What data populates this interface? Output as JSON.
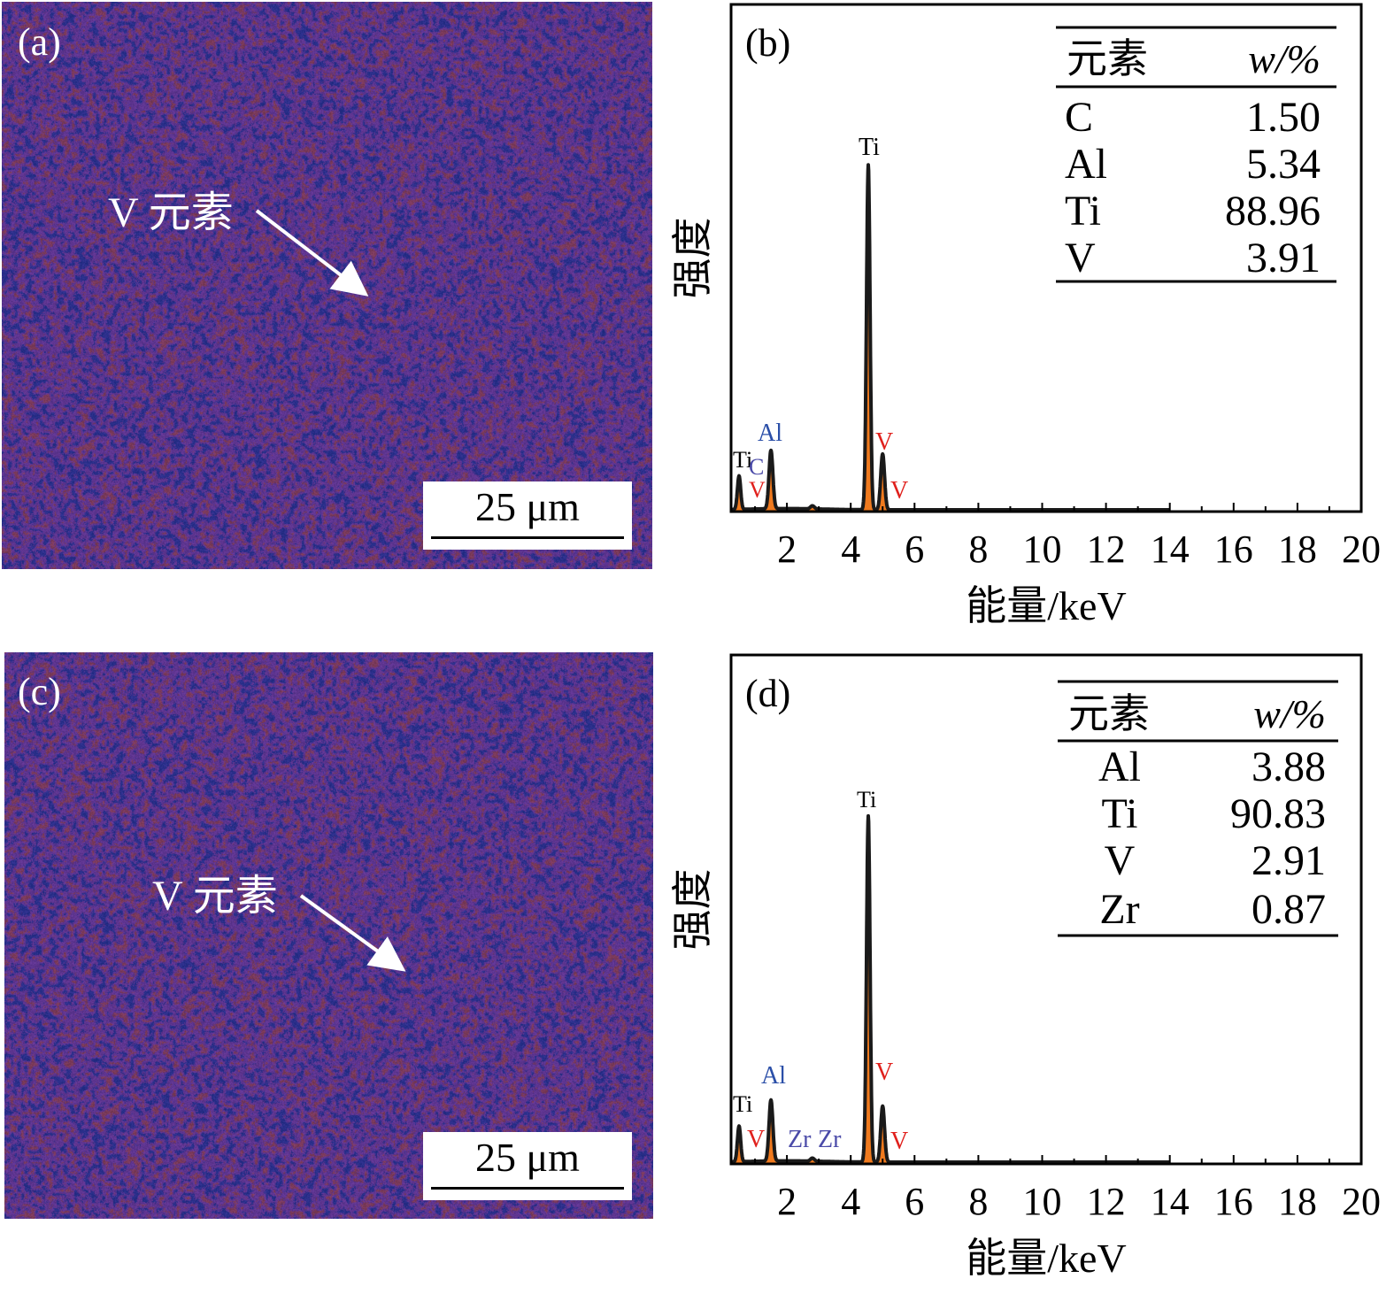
{
  "maps": [
    {
      "panel": "(a)",
      "annotation": "V 元素",
      "scale_bar": "25 μm"
    },
    {
      "panel": "(c)",
      "annotation": "V 元素",
      "scale_bar": "25 μm"
    }
  ],
  "colors": {
    "map_base": "#5e3590",
    "map_blue": "#2a2f8a",
    "map_red": "#7a3a5a",
    "spectrum_line": "#1a1a1a",
    "spectrum_fill": "#f07a1e",
    "label_ti": "#000000",
    "label_al": "#2b4fa8",
    "label_v": "#e0201c",
    "label_c": "#4a4aa8",
    "label_zr": "#4a4aa8"
  },
  "chart_data": [
    {
      "type": "line",
      "panel": "(b)",
      "xlabel": "能量/keV",
      "ylabel": "强度",
      "xlim": [
        0.25,
        20
      ],
      "ylim": [
        0,
        100
      ],
      "xticks": [
        "2",
        "4",
        "6",
        "8",
        "10",
        "12",
        "14",
        "16",
        "18",
        "20"
      ],
      "peaks": [
        {
          "energy": 0.5,
          "height": 6.6
        },
        {
          "energy": 1.5,
          "height": 11.5
        },
        {
          "energy": 2.8,
          "height": 0.6
        },
        {
          "energy": 4.55,
          "height": 68
        },
        {
          "energy": 5.0,
          "height": 11
        }
      ],
      "spectrum_end": 14,
      "annotations": [
        {
          "text": "Ti",
          "color": "label_ti"
        },
        {
          "text": "C",
          "color": "label_c"
        },
        {
          "text": "V",
          "color": "label_v"
        },
        {
          "text": "Al",
          "color": "label_al"
        },
        {
          "text": "Ti",
          "color": "label_ti"
        },
        {
          "text": "V",
          "color": "label_v"
        },
        {
          "text": "V",
          "color": "label_v"
        }
      ],
      "table": {
        "headers": [
          "元素",
          "w/%"
        ],
        "rows": [
          [
            "C",
            "1.50"
          ],
          [
            "Al",
            "5.34"
          ],
          [
            "Ti",
            "88.96"
          ],
          [
            "V",
            "3.91"
          ]
        ]
      }
    },
    {
      "type": "line",
      "panel": "(d)",
      "xlabel": "能量/keV",
      "ylabel": "强度",
      "xlim": [
        0.25,
        20
      ],
      "ylim": [
        0,
        100
      ],
      "xticks": [
        "2",
        "4",
        "6",
        "8",
        "10",
        "12",
        "14",
        "16",
        "18",
        "20"
      ],
      "peaks": [
        {
          "energy": 0.5,
          "height": 7
        },
        {
          "energy": 1.5,
          "height": 12
        },
        {
          "energy": 2.8,
          "height": 0.6
        },
        {
          "energy": 4.55,
          "height": 68
        },
        {
          "energy": 5.0,
          "height": 11
        }
      ],
      "spectrum_end": 14,
      "annotations": [
        {
          "text": "Ti",
          "color": "label_ti"
        },
        {
          "text": "V",
          "color": "label_v"
        },
        {
          "text": "Al",
          "color": "label_al"
        },
        {
          "text": "Zr",
          "color": "label_zr"
        },
        {
          "text": "Zr",
          "color": "label_zr"
        },
        {
          "text": "Ti",
          "color": "label_ti"
        },
        {
          "text": "V",
          "color": "label_v"
        },
        {
          "text": "V",
          "color": "label_v"
        }
      ],
      "table": {
        "headers": [
          "元素",
          "w/%"
        ],
        "rows": [
          [
            "Al",
            "3.88"
          ],
          [
            "Ti",
            "90.83"
          ],
          [
            "V",
            "2.91"
          ],
          [
            "Zr",
            "0.87"
          ]
        ]
      }
    }
  ]
}
